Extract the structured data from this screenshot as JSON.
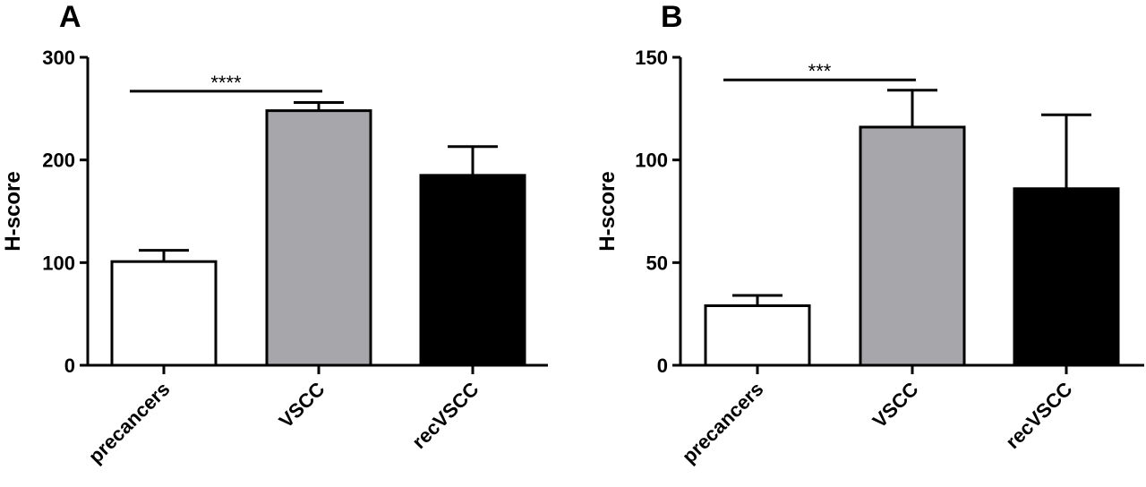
{
  "chart_data": [
    {
      "type": "bar",
      "panel_label": "A",
      "ylabel": "H-score",
      "ylim": [
        0,
        300
      ],
      "yticks": [
        "0",
        "100",
        "200",
        "300"
      ],
      "categories": [
        "precancers",
        "VSCC",
        "recVSCC"
      ],
      "values": [
        101,
        248,
        185
      ],
      "errors": [
        11,
        8,
        28
      ],
      "colors": [
        "#ffffff",
        "#a6a6ab",
        "#000000"
      ],
      "significance": {
        "label": "****",
        "from": "precancers",
        "to": "VSCC",
        "y": 267
      }
    },
    {
      "type": "bar",
      "panel_label": "B",
      "ylabel": "H-score",
      "ylim": [
        0,
        150
      ],
      "yticks": [
        "0",
        "50",
        "100",
        "150"
      ],
      "categories": [
        "precancers",
        "VSCC",
        "recVSCC"
      ],
      "values": [
        29,
        116,
        86
      ],
      "errors": [
        5,
        18,
        36
      ],
      "colors": [
        "#ffffff",
        "#a6a6ab",
        "#000000"
      ],
      "significance": {
        "label": "***",
        "from": "precancers",
        "to": "VSCC",
        "y": 139
      }
    }
  ]
}
